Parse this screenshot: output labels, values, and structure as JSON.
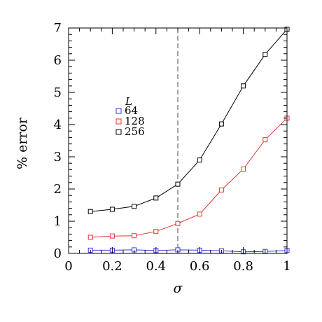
{
  "chart_data": {
    "type": "line",
    "xlabel": "σ",
    "ylabel": "% error",
    "xlim": [
      0,
      1
    ],
    "ylim": [
      0,
      7
    ],
    "x_ticks": [
      0,
      0.2,
      0.4,
      0.6,
      0.8,
      1
    ],
    "x_tick_labels": [
      "0",
      "0.2",
      "0.4",
      "0.6",
      "0.8",
      "1"
    ],
    "y_ticks": [
      0,
      1,
      2,
      3,
      4,
      5,
      6,
      7
    ],
    "y_tick_labels": [
      "0",
      "1",
      "2",
      "3",
      "4",
      "5",
      "6",
      "7"
    ],
    "marker": "open-square",
    "reference_line": {
      "x": 0.5,
      "style": "dashed"
    },
    "legend": {
      "title": "L",
      "placement": "upper-left"
    },
    "x": [
      0.1,
      0.2,
      0.3,
      0.4,
      0.5,
      0.6,
      0.7,
      0.8,
      0.9,
      1.0
    ],
    "series": [
      {
        "name": "64",
        "color": "#3232e6",
        "values": [
          0.1,
          0.1,
          0.11,
          0.09,
          0.11,
          0.1,
          0.08,
          0.05,
          0.06,
          0.09
        ]
      },
      {
        "name": "128",
        "color": "#e63232",
        "values": [
          0.5,
          0.54,
          0.55,
          0.68,
          0.93,
          1.22,
          1.97,
          2.62,
          3.53,
          4.2
        ]
      },
      {
        "name": "256",
        "color": "#000000",
        "values": [
          1.3,
          1.37,
          1.46,
          1.72,
          2.15,
          2.9,
          4.02,
          5.2,
          6.18,
          6.96
        ]
      }
    ]
  }
}
